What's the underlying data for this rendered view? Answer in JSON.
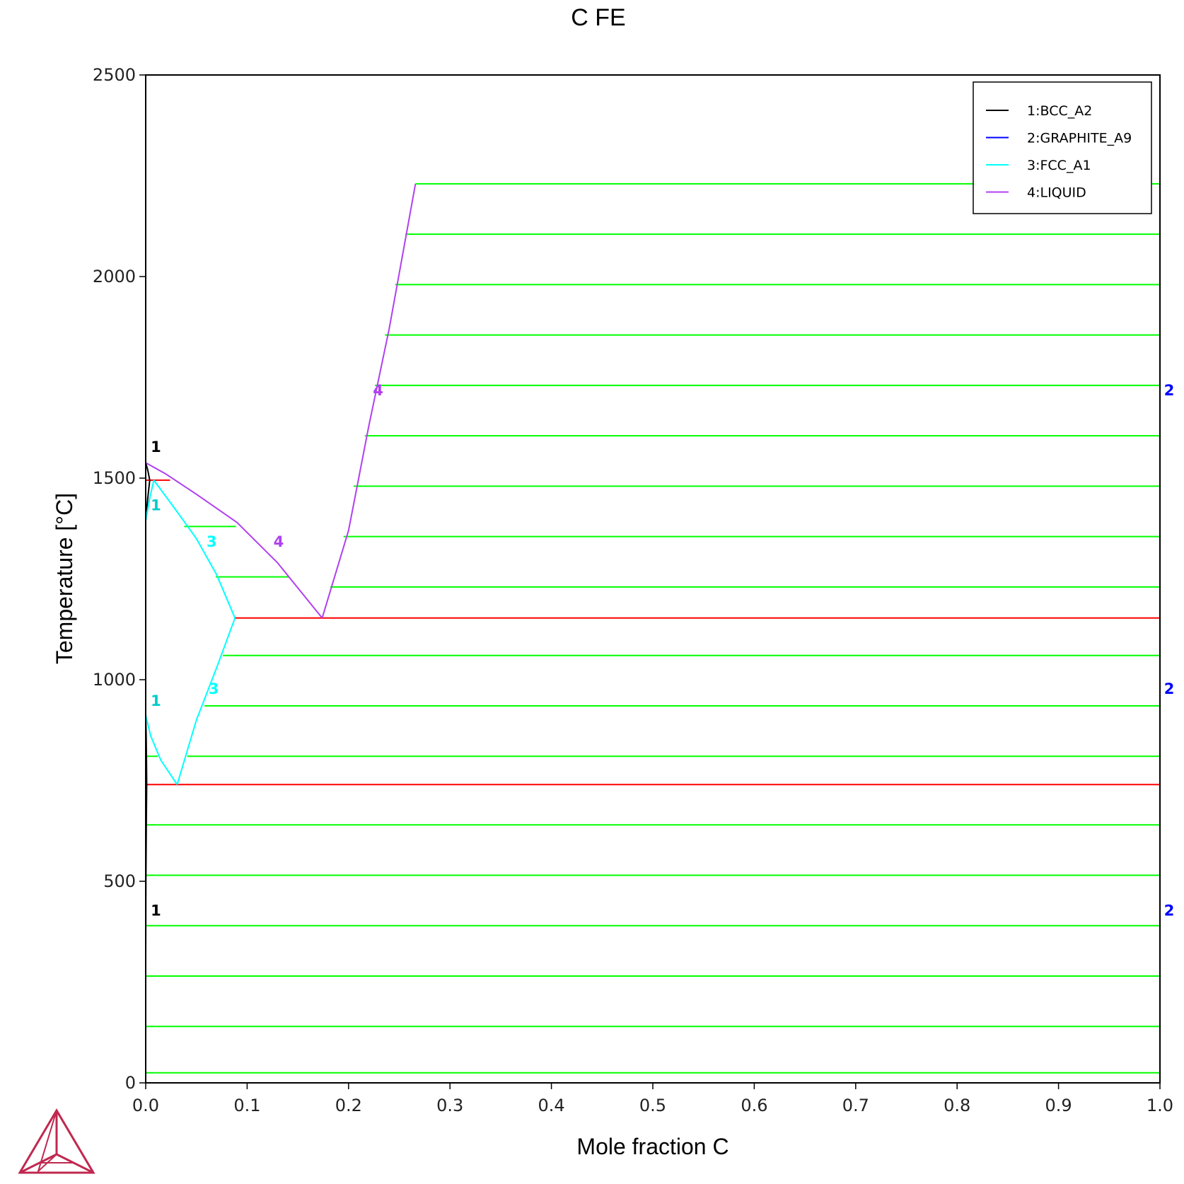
{
  "chart_data": {
    "type": "line",
    "title": "C  FE",
    "xlabel": "Mole fraction C",
    "ylabel": "Temperature [°C]",
    "xlim": [
      0,
      1
    ],
    "ylim": [
      0,
      2500
    ],
    "x_ticks": [
      "0.0",
      "0.1",
      "0.2",
      "0.3",
      "0.4",
      "0.5",
      "0.6",
      "0.7",
      "0.8",
      "0.9",
      "1.0"
    ],
    "y_ticks": [
      "0",
      "500",
      "1000",
      "1500",
      "2000",
      "2500"
    ],
    "legend_position": "top-right",
    "series": [
      {
        "name": "1:BCC_A2",
        "color": "#000000",
        "segments": [
          [
            [
              0.0,
              1538
            ],
            [
              0.002,
              1520
            ],
            [
              0.004,
              1495
            ]
          ],
          [
            [
              0.0,
              1394
            ],
            [
              0.002,
              1450
            ],
            [
              0.004,
              1495
            ]
          ],
          [
            [
              0.0,
              912
            ],
            [
              0.0005,
              860
            ],
            [
              0.0008,
              800
            ],
            [
              0.001,
              740
            ],
            [
              0.0006,
              650
            ],
            [
              0.0002,
              500
            ],
            [
              0.0,
              300
            ],
            [
              0.0,
              0
            ]
          ]
        ]
      },
      {
        "name": "2:GRAPHITE_A9",
        "color": "#0000ff",
        "segments": [
          [
            [
              1.0,
              0
            ],
            [
              1.0,
              2230
            ]
          ]
        ]
      },
      {
        "name": "3:FCC_A1",
        "color": "#00ffff",
        "segments": [
          [
            [
              0.0,
              1394
            ],
            [
              0.004,
              1450
            ],
            [
              0.008,
              1495
            ]
          ],
          [
            [
              0.008,
              1495
            ],
            [
              0.03,
              1420
            ],
            [
              0.05,
              1350
            ],
            [
              0.07,
              1260
            ],
            [
              0.088,
              1153
            ]
          ],
          [
            [
              0.088,
              1153
            ],
            [
              0.07,
              1030
            ],
            [
              0.05,
              900
            ],
            [
              0.031,
              740
            ]
          ],
          [
            [
              0.031,
              740
            ],
            [
              0.015,
              800
            ],
            [
              0.005,
              860
            ],
            [
              0.0,
              912
            ]
          ]
        ]
      },
      {
        "name": "4:LIQUID",
        "color": "#b040f0",
        "segments": [
          [
            [
              0.0,
              1538
            ],
            [
              0.02,
              1510
            ],
            [
              0.05,
              1460
            ],
            [
              0.09,
              1390
            ],
            [
              0.13,
              1290
            ],
            [
              0.174,
              1153
            ]
          ],
          [
            [
              0.174,
              1153
            ],
            [
              0.2,
              1370
            ],
            [
              0.22,
              1630
            ],
            [
              0.24,
              1870
            ],
            [
              0.266,
              2230
            ]
          ]
        ]
      }
    ],
    "tie_lines": {
      "color": "#00ff00",
      "lines": [
        {
          "y": 2230,
          "x1": 0.266,
          "x2": 1.0
        },
        {
          "y": 2105,
          "x1": 0.256,
          "x2": 1.0
        },
        {
          "y": 1980,
          "x1": 0.246,
          "x2": 1.0
        },
        {
          "y": 1855,
          "x1": 0.236,
          "x2": 1.0
        },
        {
          "y": 1730,
          "x1": 0.226,
          "x2": 1.0
        },
        {
          "y": 1605,
          "x1": 0.216,
          "x2": 1.0
        },
        {
          "y": 1480,
          "x1": 0.205,
          "x2": 1.0
        },
        {
          "y": 1355,
          "x1": 0.195,
          "x2": 1.0
        },
        {
          "y": 1230,
          "x1": 0.182,
          "x2": 1.0
        },
        {
          "y": 1380,
          "x1": 0.038,
          "x2": 0.089
        },
        {
          "y": 1255,
          "x1": 0.069,
          "x2": 0.141
        },
        {
          "y": 1060,
          "x1": 0.076,
          "x2": 1.0
        },
        {
          "y": 935,
          "x1": 0.058,
          "x2": 1.0
        },
        {
          "y": 810,
          "x1": 0.041,
          "x2": 1.0
        },
        {
          "y": 810,
          "x1": 0.0,
          "x2": 0.012
        },
        {
          "y": 640,
          "x1": 0.0,
          "x2": 1.0
        },
        {
          "y": 515,
          "x1": 0.0,
          "x2": 1.0
        },
        {
          "y": 390,
          "x1": 0.0,
          "x2": 1.0
        },
        {
          "y": 265,
          "x1": 0.0,
          "x2": 1.0
        },
        {
          "y": 140,
          "x1": 0.0,
          "x2": 1.0
        },
        {
          "y": 25,
          "x1": 0.0,
          "x2": 1.0
        }
      ]
    },
    "invariant_lines": {
      "color": "#ff0000",
      "lines": [
        {
          "y": 1495,
          "x1": 0.0,
          "x2": 0.024
        },
        {
          "y": 1153,
          "x1": 0.088,
          "x2": 1.0
        },
        {
          "y": 740,
          "x1": 0.0,
          "x2": 1.0
        }
      ]
    },
    "curve_labels": [
      {
        "text": "1",
        "x": 0.005,
        "y": 1565,
        "color": "#000000"
      },
      {
        "text": "1",
        "x": 0.005,
        "y": 1420,
        "color": "#00cccc"
      },
      {
        "text": "3",
        "x": 0.06,
        "y": 1330,
        "color": "#00ffff"
      },
      {
        "text": "4",
        "x": 0.126,
        "y": 1330,
        "color": "#b040f0"
      },
      {
        "text": "4",
        "x": 0.224,
        "y": 1705,
        "color": "#b040f0"
      },
      {
        "text": "2",
        "x": 1.004,
        "y": 1705,
        "color": "#0000ff"
      },
      {
        "text": "1",
        "x": 0.005,
        "y": 935,
        "color": "#00cccc"
      },
      {
        "text": "3",
        "x": 0.062,
        "y": 965,
        "color": "#00ffff"
      },
      {
        "text": "2",
        "x": 1.004,
        "y": 965,
        "color": "#0000ff"
      },
      {
        "text": "1",
        "x": 0.005,
        "y": 415,
        "color": "#000000"
      },
      {
        "text": "2",
        "x": 1.004,
        "y": 415,
        "color": "#0000ff"
      }
    ]
  },
  "logo": {
    "name": "thermo-calc-logo",
    "color": "#c0284f"
  }
}
